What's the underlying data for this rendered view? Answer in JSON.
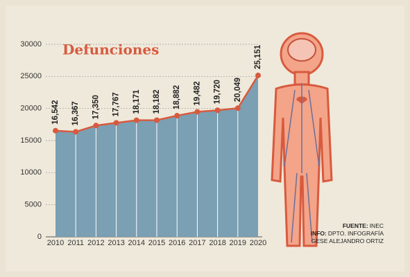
{
  "chart_data": {
    "type": "area",
    "title": "Defunciones",
    "categories": [
      "2010",
      "2011",
      "2012",
      "2013",
      "2014",
      "2015",
      "2016",
      "2017",
      "2018",
      "2019",
      "2020"
    ],
    "values": [
      16542,
      16367,
      17350,
      17767,
      18171,
      18182,
      18882,
      19482,
      19720,
      20049,
      25151
    ],
    "value_labels": [
      "16,542",
      "16,367",
      "17,350",
      "17,767",
      "18,171",
      "18,182",
      "18,882",
      "19,482",
      "19,720",
      "20,049",
      "25,151"
    ],
    "color": "#7b9fb3",
    "line_color": "#d85a3e",
    "ylim": [
      0,
      30000
    ],
    "yticks": [
      0,
      5000,
      10000,
      15000,
      20000,
      25000,
      30000
    ],
    "grid": true,
    "credits": [
      {
        "label": "FUENTE:",
        "text": "INEC"
      },
      {
        "label": "INFO:",
        "text": "DPTO. INFOGRAFÍA"
      },
      {
        "text": "GESE ALEJANDRO ORTIZ"
      }
    ]
  }
}
